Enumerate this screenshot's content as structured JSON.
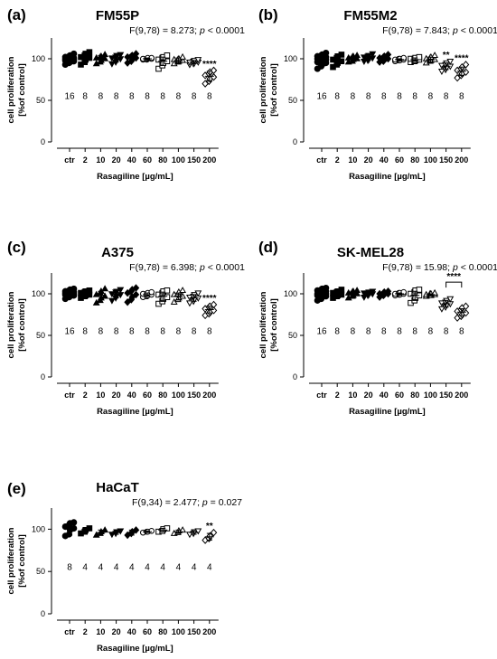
{
  "chart_data": [
    {
      "type": "scatter",
      "panel": "(a)",
      "title": "FM55P",
      "stat": {
        "prefix": "F(9,78) = 8.273; ",
        "p_symbol": "p",
        "p_suffix": " < 0.0001"
      },
      "xlabel": "Rasagiline [µg/mL]",
      "ylabel": [
        "cell proliferation",
        "[%of control]"
      ],
      "categories": [
        "ctr",
        "2",
        "10",
        "20",
        "40",
        "60",
        "80",
        "100",
        "150",
        "200"
      ],
      "ylim": [
        0,
        125
      ],
      "yticks": [
        0,
        50,
        100
      ],
      "n": [
        "16",
        "8",
        "8",
        "8",
        "8",
        "8",
        "8",
        "8",
        "8",
        "8"
      ],
      "series": [
        {
          "mean": 100,
          "sd": 4,
          "points": [
            93,
            95,
            96,
            97,
            98,
            98,
            99,
            99,
            100,
            100,
            101,
            101,
            102,
            103,
            104,
            106
          ]
        },
        {
          "mean": 101,
          "sd": 6,
          "points": [
            93,
            96,
            99,
            101,
            102,
            104,
            106,
            108
          ]
        },
        {
          "mean": 100,
          "sd": 4,
          "points": [
            94,
            96,
            98,
            100,
            101,
            102,
            103,
            105
          ]
        },
        {
          "mean": 100,
          "sd": 4,
          "points": [
            94,
            96,
            98,
            100,
            101,
            102,
            104,
            105
          ]
        },
        {
          "mean": 101,
          "sd": 4,
          "points": [
            95,
            97,
            99,
            101,
            102,
            103,
            104,
            106
          ]
        },
        {
          "mean": 100,
          "sd": 1,
          "points": [
            99,
            99,
            100,
            100,
            100,
            100,
            101,
            101
          ]
        },
        {
          "mean": 97,
          "sd": 5,
          "points": [
            88,
            92,
            95,
            97,
            99,
            101,
            102,
            104
          ]
        },
        {
          "mean": 98,
          "sd": 3,
          "points": [
            94,
            96,
            97,
            98,
            99,
            99,
            100,
            102
          ]
        },
        {
          "mean": 96,
          "sd": 2,
          "points": [
            93,
            94,
            95,
            96,
            96,
            97,
            98,
            99
          ]
        },
        {
          "mean": 79,
          "sd": 6,
          "points": [
            70,
            73,
            76,
            78,
            80,
            82,
            84,
            86
          ]
        }
      ],
      "significance": [
        {
          "category": "200",
          "label": "****"
        }
      ]
    },
    {
      "type": "scatter",
      "panel": "(b)",
      "title": "FM55M2",
      "stat": {
        "prefix": "F(9,78) = 7.843; ",
        "p_symbol": "p",
        "p_suffix": " < 0.0001"
      },
      "xlabel": "Rasagiline [µg/mL]",
      "ylabel": [
        "cell proliferation",
        "[%of control]"
      ],
      "categories": [
        "ctr",
        "2",
        "10",
        "20",
        "40",
        "60",
        "80",
        "100",
        "150",
        "200"
      ],
      "ylim": [
        0,
        125
      ],
      "yticks": [
        0,
        50,
        100
      ],
      "n": [
        "16",
        "8",
        "8",
        "8",
        "8",
        "8",
        "8",
        "8",
        "8",
        "8"
      ],
      "series": [
        {
          "mean": 98,
          "sd": 5,
          "points": [
            88,
            91,
            93,
            95,
            96,
            97,
            98,
            99,
            100,
            100,
            101,
            102,
            103,
            104,
            105,
            107
          ]
        },
        {
          "mean": 98,
          "sd": 5,
          "points": [
            90,
            93,
            95,
            97,
            99,
            101,
            103,
            105
          ]
        },
        {
          "mean": 100,
          "sd": 3,
          "points": [
            96,
            97,
            99,
            100,
            101,
            102,
            103,
            104
          ]
        },
        {
          "mean": 101,
          "sd": 3,
          "points": [
            97,
            98,
            99,
            101,
            102,
            103,
            104,
            106
          ]
        },
        {
          "mean": 100,
          "sd": 3,
          "points": [
            96,
            97,
            99,
            100,
            101,
            102,
            103,
            105
          ]
        },
        {
          "mean": 99,
          "sd": 1,
          "points": [
            97,
            98,
            98,
            99,
            99,
            100,
            100,
            101
          ]
        },
        {
          "mean": 99,
          "sd": 2,
          "points": [
            96,
            97,
            98,
            99,
            100,
            100,
            101,
            102
          ]
        },
        {
          "mean": 99,
          "sd": 3,
          "points": [
            95,
            97,
            98,
            99,
            100,
            101,
            102,
            104
          ]
        },
        {
          "mean": 91,
          "sd": 4,
          "points": [
            85,
            87,
            89,
            91,
            92,
            93,
            95,
            97
          ]
        },
        {
          "mean": 85,
          "sd": 5,
          "points": [
            77,
            80,
            82,
            84,
            86,
            88,
            90,
            93
          ]
        }
      ],
      "significance": [
        {
          "category": "150",
          "label": "**"
        },
        {
          "category": "200",
          "label": "****"
        }
      ]
    },
    {
      "type": "scatter",
      "panel": "(c)",
      "title": "A375",
      "stat": {
        "prefix": "F(9,78) = 6.398; ",
        "p_symbol": "p",
        "p_suffix": " < 0.0001"
      },
      "xlabel": "Rasagiline [µg/mL]",
      "ylabel": [
        "cell proliferation",
        "[%of control]"
      ],
      "categories": [
        "ctr",
        "2",
        "10",
        "20",
        "40",
        "60",
        "80",
        "100",
        "150",
        "200"
      ],
      "ylim": [
        0,
        125
      ],
      "yticks": [
        0,
        50,
        100
      ],
      "n": [
        "16",
        "8",
        "8",
        "8",
        "8",
        "8",
        "8",
        "8",
        "8",
        "8"
      ],
      "series": [
        {
          "mean": 100,
          "sd": 3,
          "points": [
            94,
            96,
            97,
            98,
            99,
            99,
            100,
            100,
            101,
            101,
            102,
            102,
            103,
            104,
            105,
            106
          ]
        },
        {
          "mean": 100,
          "sd": 3,
          "points": [
            95,
            97,
            98,
            99,
            101,
            102,
            103,
            104
          ]
        },
        {
          "mean": 98,
          "sd": 5,
          "points": [
            89,
            92,
            95,
            97,
            99,
            101,
            103,
            106
          ]
        },
        {
          "mean": 99,
          "sd": 4,
          "points": [
            92,
            95,
            97,
            99,
            100,
            102,
            103,
            105
          ]
        },
        {
          "mean": 99,
          "sd": 5,
          "points": [
            90,
            93,
            96,
            99,
            101,
            103,
            105,
            107
          ]
        },
        {
          "mean": 99,
          "sd": 2,
          "points": [
            96,
            97,
            98,
            99,
            100,
            100,
            101,
            102
          ]
        },
        {
          "mean": 97,
          "sd": 5,
          "points": [
            88,
            91,
            94,
            96,
            99,
            101,
            103,
            104
          ]
        },
        {
          "mean": 97,
          "sd": 4,
          "points": [
            90,
            93,
            95,
            97,
            99,
            100,
            102,
            104
          ]
        },
        {
          "mean": 95,
          "sd": 4,
          "points": [
            89,
            91,
            93,
            95,
            96,
            97,
            99,
            101
          ]
        },
        {
          "mean": 81,
          "sd": 4,
          "points": [
            74,
            76,
            78,
            80,
            82,
            84,
            85,
            87
          ]
        }
      ],
      "significance": [
        {
          "category": "200",
          "label": "****"
        }
      ]
    },
    {
      "type": "scatter",
      "panel": "(d)",
      "title": "SK-MEL28",
      "stat": {
        "prefix": "F(9,78) = 15.98; ",
        "p_symbol": "p",
        "p_suffix": " < 0.0001"
      },
      "xlabel": "Rasagiline [µg/mL]",
      "ylabel": [
        "cell proliferation",
        "[%of control]"
      ],
      "categories": [
        "ctr",
        "2",
        "10",
        "20",
        "40",
        "60",
        "80",
        "100",
        "150",
        "200"
      ],
      "ylim": [
        0,
        125
      ],
      "yticks": [
        0,
        50,
        100
      ],
      "n": [
        "16",
        "8",
        "8",
        "8",
        "8",
        "8",
        "8",
        "8",
        "8",
        "8"
      ],
      "series": [
        {
          "mean": 100,
          "sd": 4,
          "points": [
            92,
            94,
            96,
            97,
            98,
            99,
            99,
            100,
            100,
            101,
            102,
            103,
            104,
            105,
            106,
            107
          ]
        },
        {
          "mean": 100,
          "sd": 3,
          "points": [
            95,
            97,
            98,
            99,
            101,
            102,
            103,
            105
          ]
        },
        {
          "mean": 100,
          "sd": 3,
          "points": [
            95,
            97,
            98,
            100,
            101,
            102,
            103,
            104
          ]
        },
        {
          "mean": 100,
          "sd": 2,
          "points": [
            96,
            98,
            99,
            100,
            101,
            101,
            102,
            103
          ]
        },
        {
          "mean": 100,
          "sd": 2,
          "points": [
            96,
            98,
            99,
            100,
            100,
            101,
            102,
            103
          ]
        },
        {
          "mean": 100,
          "sd": 1,
          "points": [
            98,
            99,
            99,
            100,
            100,
            101,
            101,
            102
          ]
        },
        {
          "mean": 98,
          "sd": 5,
          "points": [
            89,
            92,
            95,
            98,
            100,
            102,
            104,
            105
          ]
        },
        {
          "mean": 99,
          "sd": 1,
          "points": [
            97,
            98,
            98,
            99,
            99,
            100,
            100,
            101
          ]
        },
        {
          "mean": 88,
          "sd": 4,
          "points": [
            82,
            84,
            86,
            88,
            89,
            90,
            92,
            94
          ]
        },
        {
          "mean": 78,
          "sd": 4,
          "points": [
            71,
            73,
            75,
            77,
            79,
            81,
            83,
            85
          ]
        }
      ],
      "significance": [
        {
          "categories": [
            "150",
            "200"
          ],
          "label": "****",
          "bracket": true
        }
      ]
    },
    {
      "type": "scatter",
      "panel": "(e)",
      "title": "HaCaT",
      "stat": {
        "prefix": "F(9,34) = 2.477; ",
        "p_symbol": "p",
        "p_suffix": " = 0.027"
      },
      "xlabel": "Rasagiline [µg/mL]",
      "ylabel": [
        "cell proliferation",
        "[%of control]"
      ],
      "categories": [
        "ctr",
        "2",
        "10",
        "20",
        "40",
        "60",
        "80",
        "100",
        "150",
        "200"
      ],
      "ylim": [
        0,
        125
      ],
      "yticks": [
        0,
        50,
        100
      ],
      "n": [
        "8",
        "4",
        "4",
        "4",
        "4",
        "4",
        "4",
        "4",
        "4",
        "4"
      ],
      "series": [
        {
          "mean": 100,
          "sd": 7,
          "points": [
            92,
            94,
            99,
            101,
            103,
            105,
            107,
            108
          ]
        },
        {
          "mean": 98,
          "sd": 3,
          "points": [
            95,
            97,
            99,
            101
          ]
        },
        {
          "mean": 96,
          "sd": 3,
          "points": [
            93,
            95,
            97,
            99
          ]
        },
        {
          "mean": 96,
          "sd": 2,
          "points": [
            94,
            95,
            97,
            98
          ]
        },
        {
          "mean": 96,
          "sd": 3,
          "points": [
            93,
            95,
            97,
            99
          ]
        },
        {
          "mean": 97,
          "sd": 1,
          "points": [
            96,
            97,
            97,
            98
          ]
        },
        {
          "mean": 99,
          "sd": 2,
          "points": [
            97,
            98,
            100,
            101
          ]
        },
        {
          "mean": 97,
          "sd": 2,
          "points": [
            95,
            96,
            98,
            99
          ]
        },
        {
          "mean": 96,
          "sd": 2,
          "points": [
            94,
            95,
            97,
            98
          ]
        },
        {
          "mean": 91,
          "sd": 4,
          "points": [
            87,
            89,
            92,
            96
          ]
        }
      ],
      "significance": [
        {
          "category": "200",
          "label": "**"
        }
      ]
    }
  ],
  "marker_shapes": [
    "circle",
    "square",
    "triangle-up",
    "triangle-down",
    "diamond",
    "circle-open",
    "square-open",
    "triangle-up-open",
    "triangle-down-open",
    "diamond-open"
  ]
}
